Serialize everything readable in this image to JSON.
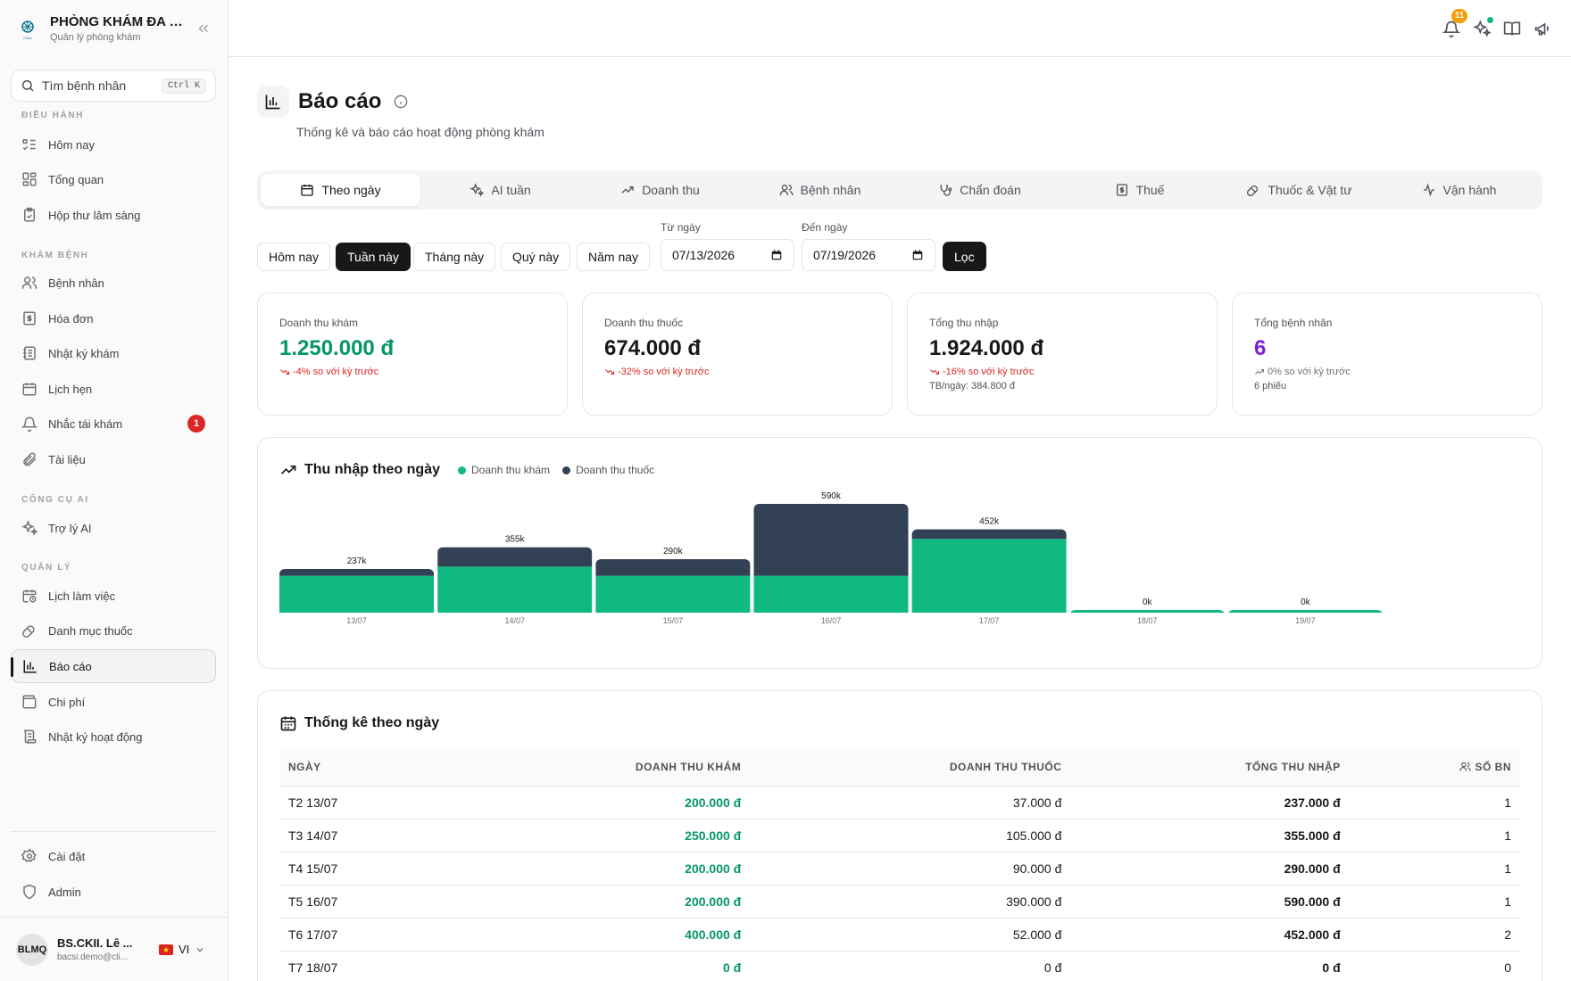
{
  "sidebar": {
    "brand_title": "PHÒNG KHÁM ĐA KH...",
    "brand_subtitle": "Quản lý phòng khám",
    "search_placeholder": "Tìm bệnh nhân",
    "search_shortcut": "Ctrl K",
    "sections": {
      "dieu_hanh": "ĐIỀU HÀNH",
      "kham_benh": "KHÁM BỆNH",
      "cong_cu_ai": "CÔNG CỤ AI",
      "quan_ly": "QUẢN LÝ"
    },
    "items": [
      {
        "label": "Hôm nay",
        "icon": "list-todo-icon"
      },
      {
        "label": "Tổng quan",
        "icon": "dashboard-icon"
      },
      {
        "label": "Hộp thư lâm sàng",
        "icon": "clipboard-icon"
      },
      {
        "label": "Bệnh nhân",
        "icon": "users-icon"
      },
      {
        "label": "Hóa đơn",
        "icon": "receipt-icon"
      },
      {
        "label": "Nhật ký khám",
        "icon": "notebook-icon"
      },
      {
        "label": "Lịch hẹn",
        "icon": "calendar-icon"
      },
      {
        "label": "Nhắc tái khám",
        "icon": "bell-icon",
        "badge": "1"
      },
      {
        "label": "Tài liệu",
        "icon": "paperclip-icon"
      },
      {
        "label": "Trợ lý AI",
        "icon": "sparkles-icon"
      },
      {
        "label": "Lịch làm việc",
        "icon": "calendar-clock-icon"
      },
      {
        "label": "Danh mục thuốc",
        "icon": "pill-icon"
      },
      {
        "label": "Báo cáo",
        "icon": "bar-chart-icon",
        "active": true
      },
      {
        "label": "Chi phí",
        "icon": "wallet-icon"
      },
      {
        "label": "Nhật ký hoạt động",
        "icon": "scroll-icon"
      },
      {
        "label": "Cài đặt",
        "icon": "settings-icon"
      },
      {
        "label": "Admin",
        "icon": "shield-icon"
      }
    ],
    "user": {
      "initials": "BLMQ",
      "name": "BS.CKII. Lê ...",
      "email": "bacsi.demo@cli...",
      "lang": "VI"
    }
  },
  "topbar": {
    "notification_count": "11"
  },
  "page": {
    "title": "Báo cáo",
    "subtitle": "Thống kê và báo cáo hoạt động phòng khám"
  },
  "tabs": [
    "Theo ngày",
    "AI tuần",
    "Doanh thu",
    "Bệnh nhân",
    "Chẩn đoán",
    "Thuế",
    "Thuốc & Vật tư",
    "Vận hành"
  ],
  "filters": {
    "presets": [
      "Hôm nay",
      "Tuần này",
      "Tháng này",
      "Quý này",
      "Năm nay"
    ],
    "active_preset": "Tuần này",
    "from_label": "Từ ngày",
    "from_value": "07/13/2026",
    "to_label": "Đến ngày",
    "to_value": "07/19/2026",
    "apply_label": "Lọc"
  },
  "cards": [
    {
      "label": "Doanh thu khám",
      "value": "1.250.000 đ",
      "trend": "-4% so với kỳ trước",
      "extra": "",
      "color": "#059669"
    },
    {
      "label": "Doanh thu thuốc",
      "value": "674.000 đ",
      "trend": "-32% so với kỳ trước",
      "extra": "",
      "color": "#18181b"
    },
    {
      "label": "Tổng thu nhập",
      "value": "1.924.000 đ",
      "trend": "-16% so với kỳ trước",
      "extra": "TB/ngày: 384.800 đ",
      "color": "#18181b"
    },
    {
      "label": "Tổng bệnh nhân",
      "value": "6",
      "trend": "0% so với kỳ trước",
      "extra": "6 phiếu",
      "color": "#7e22ce"
    }
  ],
  "chart_panel": {
    "title": "Thu nhập theo ngày",
    "legend": [
      {
        "name": "Doanh thu khám",
        "color": "#10b981"
      },
      {
        "name": "Doanh thu thuốc",
        "color": "#334155"
      }
    ]
  },
  "chart_data": {
    "type": "bar",
    "stacked": true,
    "categories": [
      "13/07",
      "14/07",
      "15/07",
      "16/07",
      "17/07",
      "18/07",
      "19/07"
    ],
    "series": [
      {
        "name": "Doanh thu khám",
        "values": [
          200000,
          250000,
          200000,
          200000,
          400000,
          0,
          0
        ],
        "color": "#10b981"
      },
      {
        "name": "Doanh thu thuốc",
        "values": [
          37000,
          105000,
          90000,
          390000,
          52000,
          0,
          0
        ],
        "color": "#334155"
      }
    ],
    "total_labels": [
      "237k",
      "355k",
      "290k",
      "590k",
      "452k",
      "0k",
      "0k"
    ],
    "ylim": [
      0,
      590000
    ]
  },
  "table_panel": {
    "title": "Thống kê theo ngày",
    "headers": [
      "NGÀY",
      "DOANH THU KHÁM",
      "DOANH THU THUỐC",
      "TỔNG THU NHẬP",
      "SỐ BN"
    ],
    "rows": [
      [
        "T2 13/07",
        "200.000 đ",
        "37.000 đ",
        "237.000 đ",
        "1"
      ],
      [
        "T3 14/07",
        "250.000 đ",
        "105.000 đ",
        "355.000 đ",
        "1"
      ],
      [
        "T4 15/07",
        "200.000 đ",
        "90.000 đ",
        "290.000 đ",
        "1"
      ],
      [
        "T5 16/07",
        "200.000 đ",
        "390.000 đ",
        "590.000 đ",
        "1"
      ],
      [
        "T6 17/07",
        "400.000 đ",
        "52.000 đ",
        "452.000 đ",
        "2"
      ],
      [
        "T7 18/07",
        "0 đ",
        "0 đ",
        "0 đ",
        "0"
      ]
    ]
  }
}
